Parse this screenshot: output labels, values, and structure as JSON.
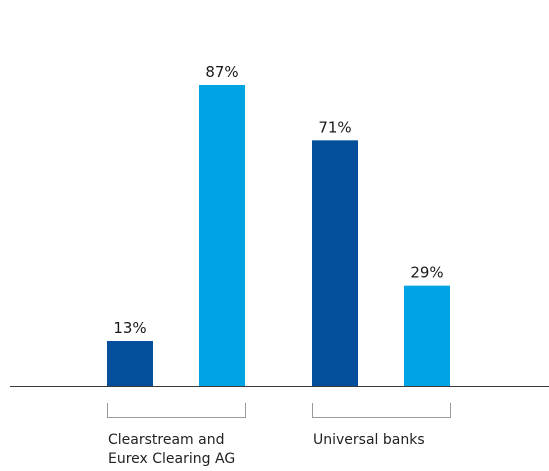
{
  "chart_data": {
    "type": "bar",
    "title": "",
    "xlabel": "",
    "ylabel": "",
    "ylim": [
      0,
      100
    ],
    "unit": "%",
    "grid": false,
    "legend": "none",
    "groups": [
      {
        "label_lines": [
          "Clearstream and",
          "Eurex Clearing AG"
        ],
        "bars": [
          {
            "value": 13,
            "label": "13%",
            "color": "#034f9c"
          },
          {
            "value": 87,
            "label": "87%",
            "color": "#00a3e3"
          }
        ]
      },
      {
        "label_lines": [
          "Universal banks"
        ],
        "bars": [
          {
            "value": 71,
            "label": "71%",
            "color": "#034f9c"
          },
          {
            "value": 29,
            "label": "29%",
            "color": "#00a3e3"
          }
        ]
      }
    ]
  }
}
